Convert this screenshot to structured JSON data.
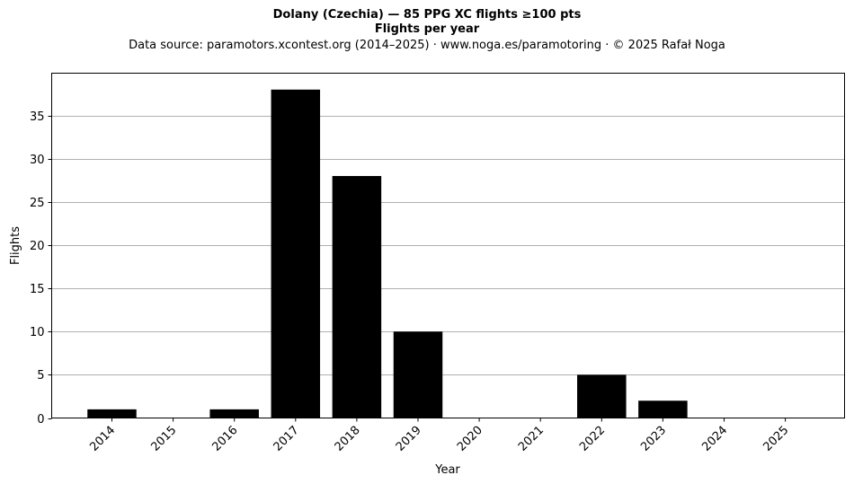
{
  "header": {
    "title": "Dolany (Czechia)  —  85 PPG XC flights ≥100 pts",
    "subtitle": "Flights per year",
    "source": "Data source: paramotors.xcontest.org (2014–2025)  ·  www.noga.es/paramotoring  ·  © 2025 Rafał Noga"
  },
  "chart_data": {
    "type": "bar",
    "categories": [
      "2014",
      "2015",
      "2016",
      "2017",
      "2018",
      "2019",
      "2020",
      "2021",
      "2022",
      "2023",
      "2024",
      "2025"
    ],
    "values": [
      1,
      0,
      1,
      38,
      28,
      10,
      0,
      0,
      5,
      2,
      0,
      0
    ],
    "title": "Dolany (Czechia)  —  85 PPG XC flights ≥100 pts",
    "subtitle": "Flights per year",
    "xlabel": "Year",
    "ylabel": "Flights",
    "ylim": [
      0,
      39.9
    ],
    "yticks": [
      0,
      5,
      10,
      15,
      20,
      25,
      30,
      35
    ],
    "grid": "y",
    "bar_color": "#000000",
    "grid_color": "#b0b0b0"
  }
}
